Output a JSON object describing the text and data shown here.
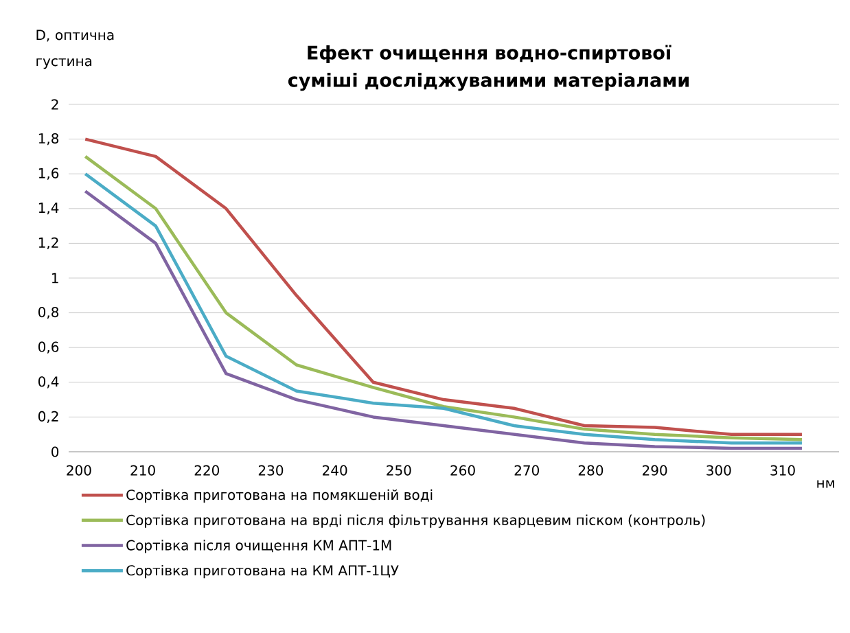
{
  "chart_data": {
    "type": "line",
    "title": "Ефект очищення водно-спиртової суміші досліджуваними матеріалами",
    "ylabel": "D, оптична густина",
    "xlabel": "нм",
    "x": [
      201,
      212,
      223,
      234,
      246,
      257,
      268,
      279,
      290,
      302,
      313
    ],
    "series": [
      {
        "name": "Сортівка приготована на помякшеній воді",
        "color": "#c0504d",
        "values": [
          1.8,
          1.7,
          1.4,
          0.9,
          0.4,
          0.3,
          0.25,
          0.15,
          0.14,
          0.1,
          0.1
        ]
      },
      {
        "name": "Сортівка приготована на врді після фільтрування кварцевим піском (контроль)",
        "color": "#9bbb59",
        "values": [
          1.7,
          1.4,
          0.8,
          0.5,
          0.37,
          0.26,
          0.2,
          0.13,
          0.1,
          0.08,
          0.07
        ]
      },
      {
        "name": "Сортівка після очищення КМ АПТ-1М",
        "color": "#8064a2",
        "values": [
          1.5,
          1.2,
          0.45,
          0.3,
          0.2,
          0.15,
          0.1,
          0.05,
          0.03,
          0.02,
          0.02
        ]
      },
      {
        "name": "Сортівка приготована на КМ АПТ-1ЦУ",
        "color": "#4bacc6",
        "values": [
          1.6,
          1.3,
          0.55,
          0.35,
          0.28,
          0.25,
          0.15,
          0.1,
          0.07,
          0.05,
          0.05
        ]
      }
    ],
    "xlim": [
      198.4,
      318.8
    ],
    "xticks": [
      200,
      210,
      220,
      230,
      240,
      250,
      260,
      270,
      280,
      290,
      300,
      310
    ],
    "ylim": [
      0,
      2
    ],
    "yticks": [
      {
        "value": 0,
        "label": "0"
      },
      {
        "value": 0.2,
        "label": "0,2"
      },
      {
        "value": 0.4,
        "label": "0,4"
      },
      {
        "value": 0.6,
        "label": "0,6"
      },
      {
        "value": 0.8,
        "label": "0,8"
      },
      {
        "value": 1,
        "label": "1"
      },
      {
        "value": 1.2,
        "label": "1,2"
      },
      {
        "value": 1.4,
        "label": "1,4"
      },
      {
        "value": 1.6,
        "label": "1,6"
      },
      {
        "value": 1.8,
        "label": "1,8"
      },
      {
        "value": 2,
        "label": "2"
      }
    ],
    "grid": "y",
    "legend": "bottom",
    "line_style": "solid"
  }
}
